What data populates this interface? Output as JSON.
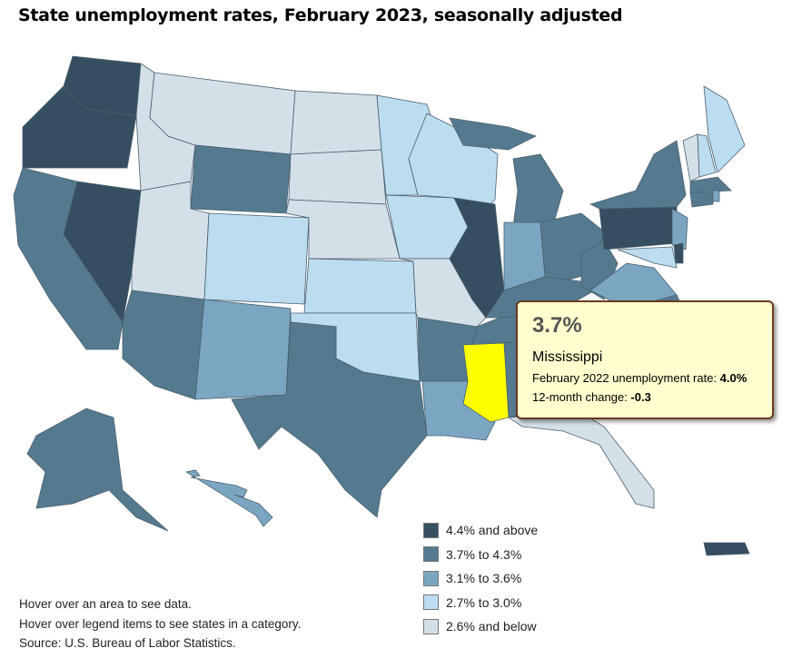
{
  "title": "State unemployment rates, February 2023, seasonally adjusted",
  "colors": {
    "cat1": "#364f60",
    "cat2": "#557a8f",
    "cat3": "#7ba6c2",
    "cat4": "#bcdcf0",
    "cat5": "#d4e0e8",
    "highlight": "#ffff00",
    "tooltip_bg": "#ffffd0"
  },
  "legend": [
    {
      "label": "4.4% and above",
      "color": "#364f60"
    },
    {
      "label": "3.7% to 4.3%",
      "color": "#557a8f"
    },
    {
      "label": "3.1% to 3.6%",
      "color": "#7ba6c2"
    },
    {
      "label": "2.7% to 3.0%",
      "color": "#bcdcf0"
    },
    {
      "label": "2.6% and below",
      "color": "#d4e0e8"
    }
  ],
  "tooltip": {
    "rate": "3.7%",
    "state": "Mississippi",
    "prev_label": "February 2022 unemployment rate: ",
    "prev_value": "4.0%",
    "change_label": "12-month change: ",
    "change_value": "-0.3"
  },
  "notes": [
    "Hover over an area to see data.",
    "Hover over legend items to see states in a category.",
    "Source: U.S. Bureau of Labor Statistics."
  ]
}
